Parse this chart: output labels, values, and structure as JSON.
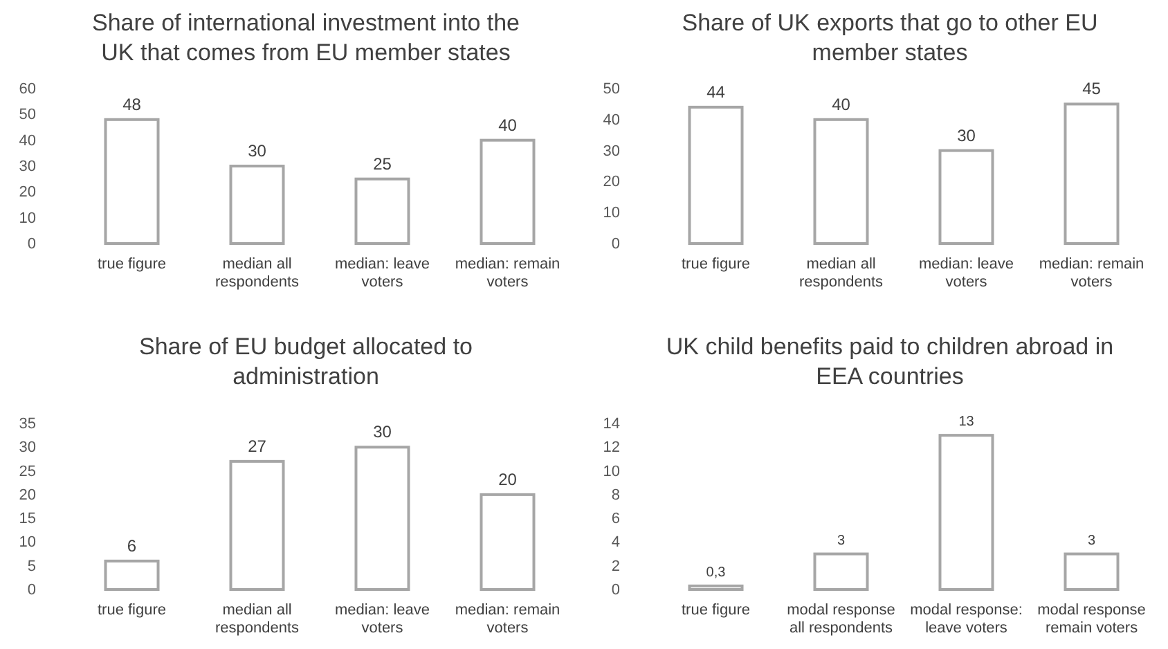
{
  "chart_data": [
    {
      "type": "bar",
      "title": "Share of international investment into the UK that comes from EU member states",
      "categories": [
        "true figure",
        "median all respondents",
        "median: leave voters",
        "median: remain voters"
      ],
      "values": [
        48,
        30,
        25,
        40
      ],
      "color": "#a6a6a6",
      "ylim": [
        0,
        60
      ],
      "yticks": [
        0,
        10,
        20,
        30,
        40,
        50,
        60
      ],
      "data_labels": true
    },
    {
      "type": "bar",
      "title": "Share of UK exports that go to other EU member states",
      "categories": [
        "true figure",
        "median all respondents",
        "median: leave voters",
        "median: remain voters"
      ],
      "values": [
        44,
        40,
        30,
        45
      ],
      "color": "#a6a6a6",
      "ylim": [
        0,
        50
      ],
      "yticks": [
        0,
        10,
        20,
        30,
        40,
        50
      ],
      "data_labels": true
    },
    {
      "type": "bar",
      "title": "Share of EU budget allocated to administration",
      "categories": [
        "true figure",
        "median all respondents",
        "median: leave voters",
        "median: remain voters"
      ],
      "values": [
        6,
        27,
        30,
        20
      ],
      "color": "#a6a6a6",
      "ylim": [
        0,
        35
      ],
      "yticks": [
        0,
        5,
        10,
        15,
        20,
        25,
        30,
        35
      ],
      "data_labels": true
    },
    {
      "type": "bar",
      "title": "UK child benefits paid to children abroad in EEA countries",
      "categories": [
        "true figure",
        "modal response all respondents",
        "modal response: leave voters",
        "modal response remain voters"
      ],
      "values": [
        0.3,
        3,
        13,
        3
      ],
      "value_labels": [
        "0,3",
        "3",
        "13",
        "3"
      ],
      "color": "#a6a6a6",
      "ylim": [
        0,
        14
      ],
      "yticks": [
        0,
        2,
        4,
        6,
        8,
        10,
        12,
        14
      ]
    }
  ]
}
